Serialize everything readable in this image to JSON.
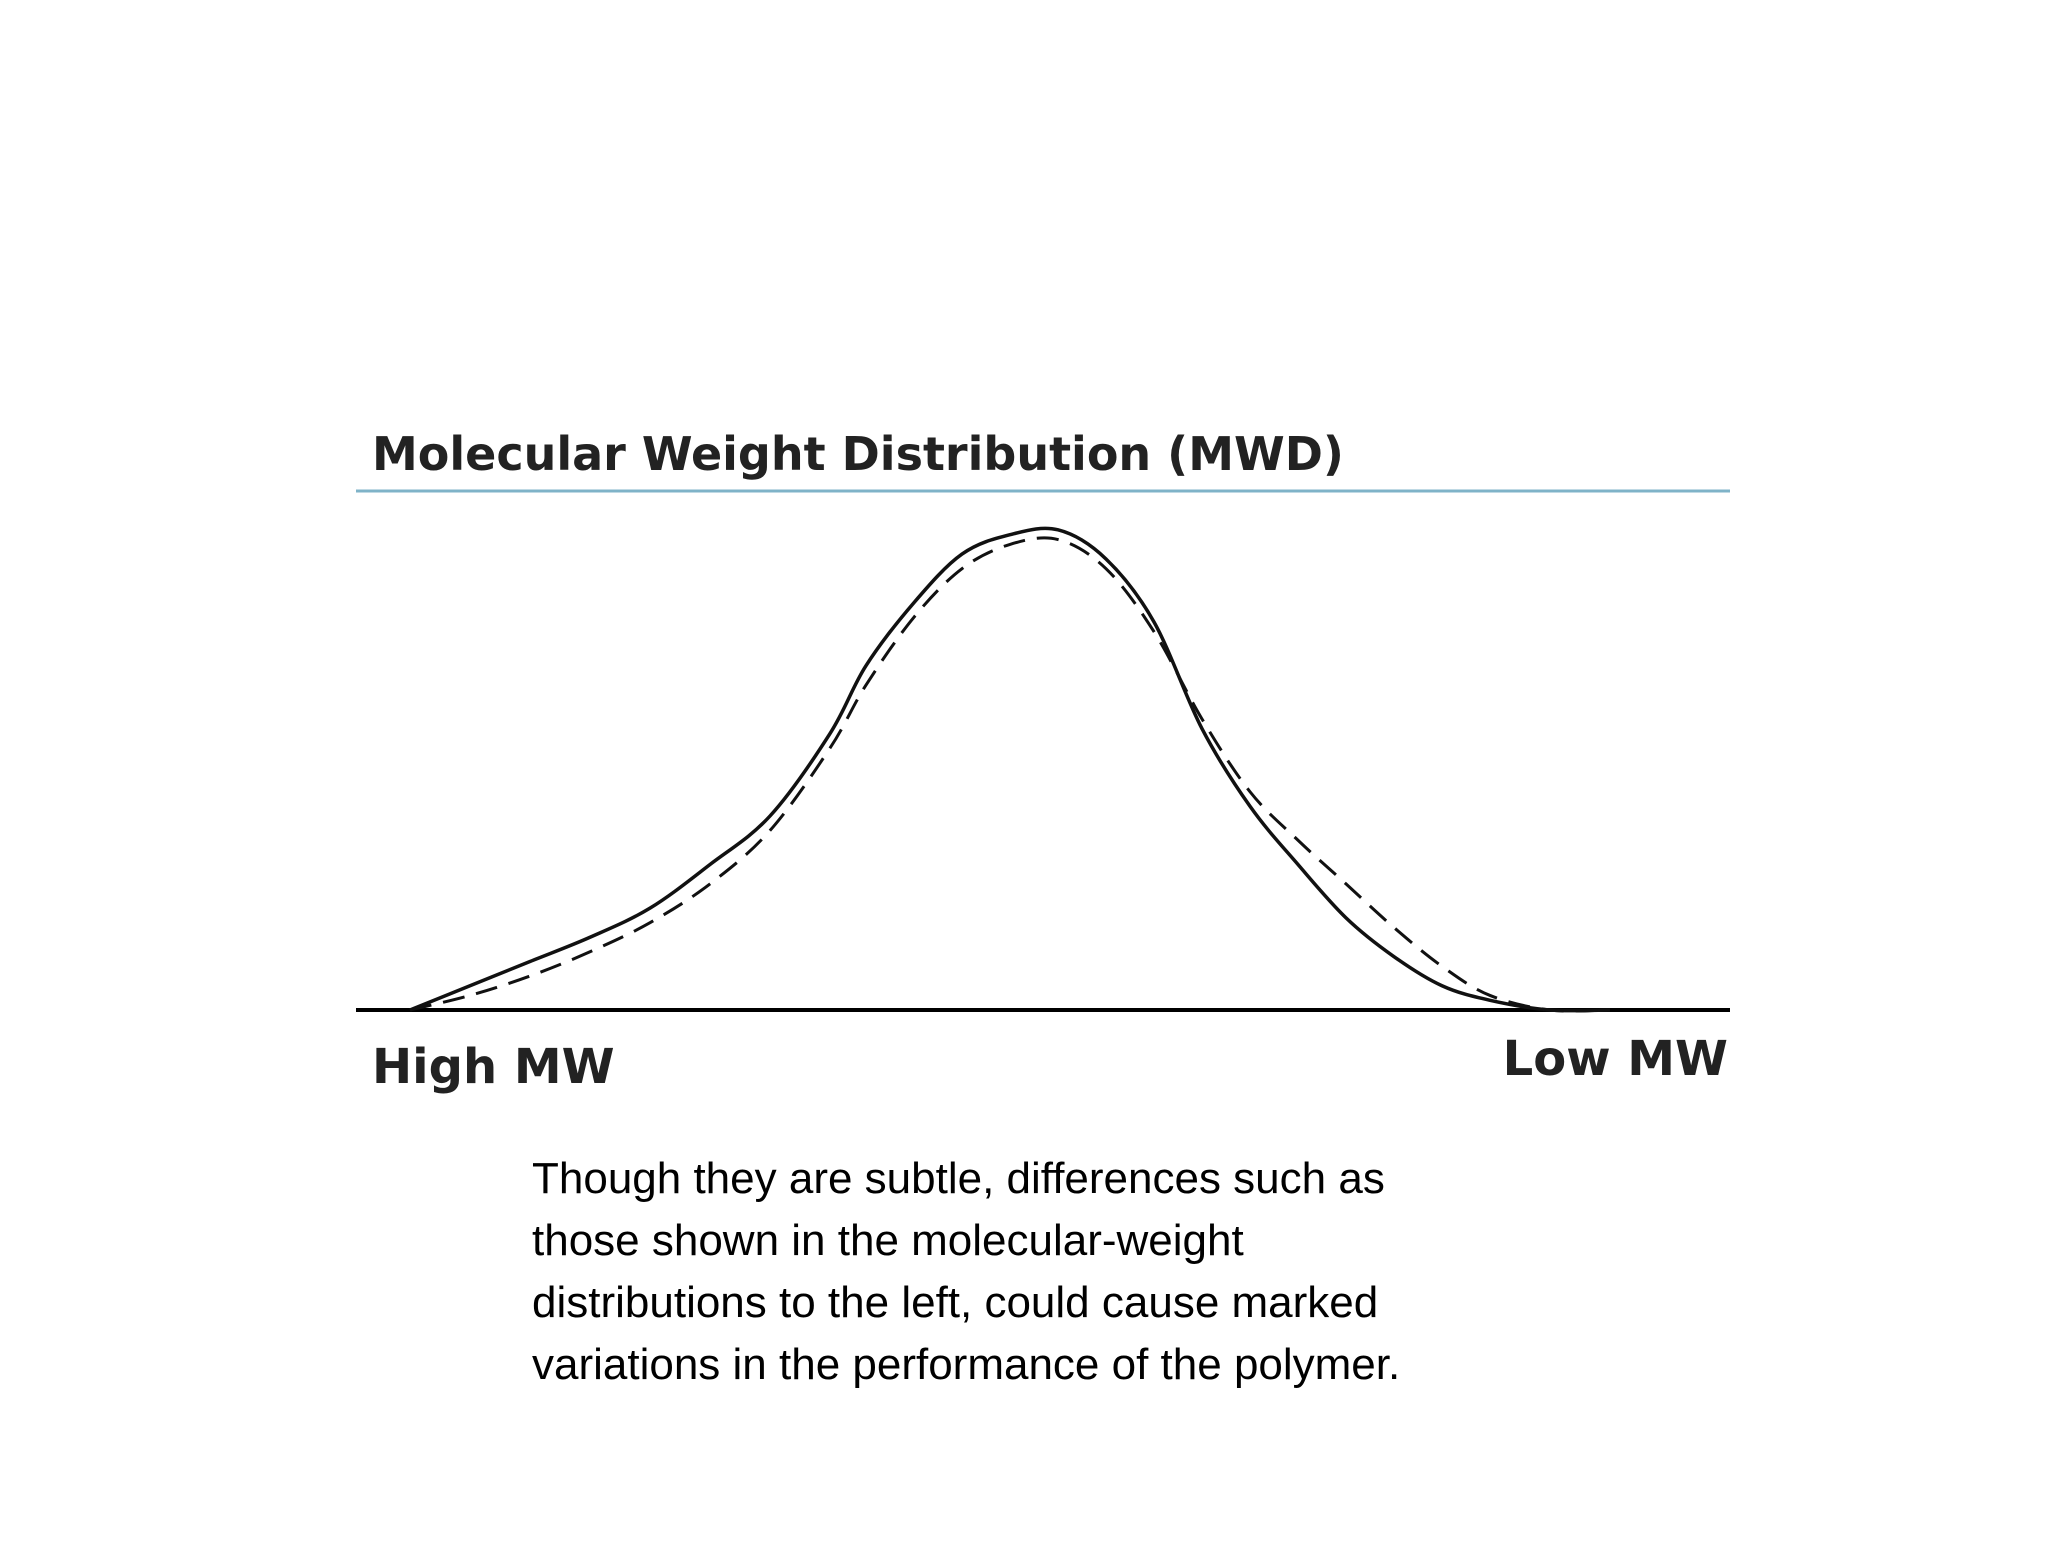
{
  "chart_data": {
    "type": "line",
    "title": "Molecular Weight Distribution (MWD)",
    "xlabel": "",
    "ylabel": "",
    "x_axis_endpoints": {
      "left": "High MW",
      "right": "Low MW"
    },
    "xlim": [
      0,
      100
    ],
    "ylim": [
      0,
      100
    ],
    "grid": false,
    "legend": "none",
    "series": [
      {
        "style": "solid",
        "x": [
          0,
          5,
          10,
          15,
          20,
          25,
          30,
          35,
          38,
          42,
          46,
          50,
          54,
          58,
          62,
          66,
          70,
          74,
          78,
          82,
          86,
          90,
          95,
          100
        ],
        "y": [
          0,
          5,
          10,
          15,
          21,
          30,
          40,
          57,
          71,
          84,
          94,
          98,
          99,
          93,
          80,
          58,
          42,
          30,
          19,
          11,
          5,
          2,
          0,
          0
        ]
      },
      {
        "style": "dashed",
        "x": [
          0,
          5,
          10,
          15,
          20,
          25,
          30,
          35,
          38,
          42,
          46,
          50,
          54,
          58,
          62,
          66,
          70,
          74,
          78,
          82,
          86,
          90,
          95,
          100
        ],
        "y": [
          0,
          3,
          7,
          12,
          18,
          26,
          37,
          54,
          67,
          81,
          91,
          96,
          97,
          91,
          78,
          60,
          45,
          35,
          26,
          17,
          9,
          3,
          0,
          0
        ]
      }
    ]
  },
  "caption": {
    "lines": [
      "Though they are subtle, differences such as",
      "those shown in the molecular-weight",
      "distributions to the left, could cause marked",
      "variations in the performance of the polymer."
    ]
  }
}
